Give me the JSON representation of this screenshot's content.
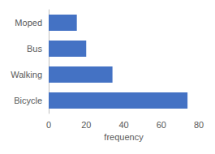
{
  "chart_data": {
    "type": "bar",
    "orientation": "horizontal",
    "categories": [
      "Bicycle",
      "Walking",
      "Bus",
      "Moped"
    ],
    "values": [
      74,
      34,
      20,
      15
    ],
    "color": "#4472c4",
    "x_label": "frequency",
    "xlim": [
      0,
      80
    ],
    "xticks": [
      0,
      20,
      40,
      60,
      80
    ],
    "grid": false
  }
}
